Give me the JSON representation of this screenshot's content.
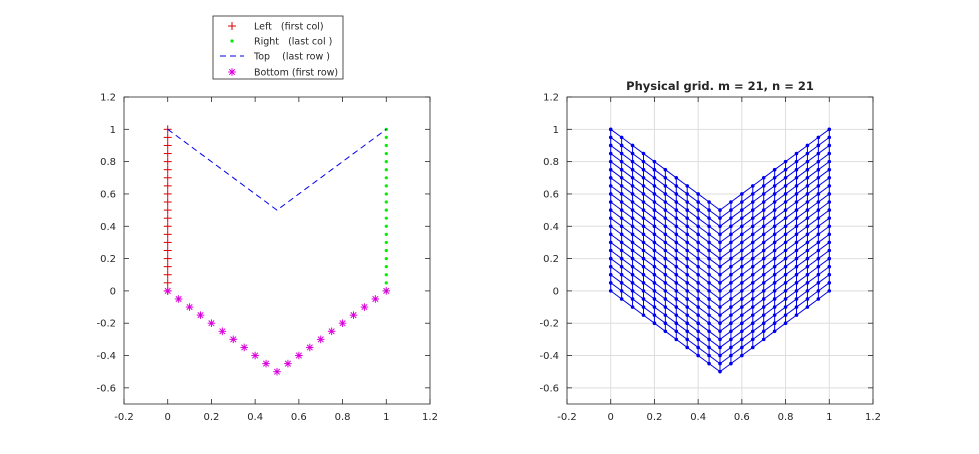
{
  "chart_data": [
    {
      "type": "line",
      "title": "",
      "xlabel": "",
      "ylabel": "",
      "xlim": [
        -0.2,
        1.2
      ],
      "ylim": [
        -0.7,
        1.2
      ],
      "xticks": [
        -0.2,
        0,
        0.2,
        0.4,
        0.6,
        0.8,
        1,
        1.2
      ],
      "yticks": [
        -0.6,
        -0.4,
        -0.2,
        0,
        0.2,
        0.4,
        0.6,
        0.8,
        1,
        1.2
      ],
      "grid": false,
      "legend_position": "top-outside",
      "series": [
        {
          "name": "Left   (first col)",
          "marker": "+",
          "line": "none",
          "color": "#dd0000",
          "x": [
            0,
            0,
            0,
            0,
            0,
            0,
            0,
            0,
            0,
            0,
            0,
            0,
            0,
            0,
            0,
            0,
            0,
            0,
            0,
            0,
            0
          ],
          "y": [
            0,
            0.05,
            0.1,
            0.15,
            0.2,
            0.25,
            0.3,
            0.35,
            0.4,
            0.45,
            0.5,
            0.55,
            0.6,
            0.65,
            0.7,
            0.75,
            0.8,
            0.85,
            0.9,
            0.95,
            1
          ]
        },
        {
          "name": "Right   (last col )",
          "marker": "dot",
          "line": "none",
          "color": "#00ee00",
          "x": [
            1,
            1,
            1,
            1,
            1,
            1,
            1,
            1,
            1,
            1,
            1,
            1,
            1,
            1,
            1,
            1,
            1,
            1,
            1,
            1,
            1
          ],
          "y": [
            0,
            0.05,
            0.1,
            0.15,
            0.2,
            0.25,
            0.3,
            0.35,
            0.4,
            0.45,
            0.5,
            0.55,
            0.6,
            0.65,
            0.7,
            0.75,
            0.8,
            0.85,
            0.9,
            0.95,
            1
          ]
        },
        {
          "name": "Top    (last row )",
          "marker": "none",
          "line": "dashed",
          "color": "#0000ee",
          "x": [
            0,
            0.05,
            0.1,
            0.15,
            0.2,
            0.25,
            0.3,
            0.35,
            0.4,
            0.45,
            0.5,
            0.55,
            0.6,
            0.65,
            0.7,
            0.75,
            0.8,
            0.85,
            0.9,
            0.95,
            1
          ],
          "y": [
            1,
            0.95,
            0.9,
            0.85,
            0.8,
            0.75,
            0.7,
            0.65,
            0.6,
            0.55,
            0.5,
            0.55,
            0.6,
            0.65,
            0.7,
            0.75,
            0.8,
            0.85,
            0.9,
            0.95,
            1
          ]
        },
        {
          "name": "Bottom (first row)",
          "marker": "*",
          "line": "none",
          "color": "#dd00dd",
          "x": [
            0,
            0.05,
            0.1,
            0.15,
            0.2,
            0.25,
            0.3,
            0.35,
            0.4,
            0.45,
            0.5,
            0.55,
            0.6,
            0.65,
            0.7,
            0.75,
            0.8,
            0.85,
            0.9,
            0.95,
            1
          ],
          "y": [
            0,
            -0.05,
            -0.1,
            -0.15,
            -0.2,
            -0.25,
            -0.3,
            -0.35,
            -0.4,
            -0.45,
            -0.5,
            -0.45,
            -0.4,
            -0.35,
            -0.3,
            -0.25,
            -0.2,
            -0.15,
            -0.1,
            -0.05,
            0
          ]
        }
      ]
    },
    {
      "type": "line",
      "title": "Physical grid. m = 21, n = 21",
      "xlabel": "",
      "ylabel": "",
      "xlim": [
        -0.2,
        1.2
      ],
      "ylim": [
        -0.7,
        1.2
      ],
      "xticks": [
        -0.2,
        0,
        0.2,
        0.4,
        0.6,
        0.8,
        1,
        1.2
      ],
      "yticks": [
        -0.6,
        -0.4,
        -0.2,
        0,
        0.2,
        0.4,
        0.6,
        0.8,
        1,
        1.2
      ],
      "grid": true,
      "m": 21,
      "n": 21,
      "color": "#0000ee",
      "marker": "dot",
      "grid_x": [
        0,
        0.05,
        0.1,
        0.15,
        0.2,
        0.25,
        0.3,
        0.35,
        0.4,
        0.45,
        0.5,
        0.55,
        0.6,
        0.65,
        0.7,
        0.75,
        0.8,
        0.85,
        0.9,
        0.95,
        1
      ],
      "grid_bottom_y": [
        0,
        -0.05,
        -0.1,
        -0.15,
        -0.2,
        -0.25,
        -0.3,
        -0.35,
        -0.4,
        -0.45,
        -0.5,
        -0.45,
        -0.4,
        -0.35,
        -0.3,
        -0.25,
        -0.2,
        -0.15,
        -0.1,
        -0.05,
        0
      ],
      "grid_height": 1
    }
  ]
}
